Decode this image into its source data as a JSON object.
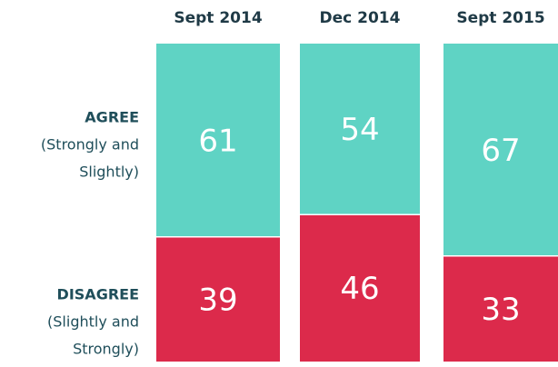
{
  "chart_data": {
    "type": "stacked_bar_100",
    "categories": [
      "Sept 2014",
      "Dec 2014",
      "Sept 2015"
    ],
    "series": [
      {
        "name": "AGREE",
        "description": [
          "(Strongly and",
          "Slightly)"
        ],
        "color": "#5fd3c4",
        "values": [
          61,
          54,
          67
        ]
      },
      {
        "name": "DISAGREE",
        "description": [
          "(Slightly and",
          "Strongly)"
        ],
        "color": "#dc2a4b",
        "values": [
          39,
          46,
          33
        ]
      }
    ],
    "ylim": [
      0,
      100
    ]
  }
}
